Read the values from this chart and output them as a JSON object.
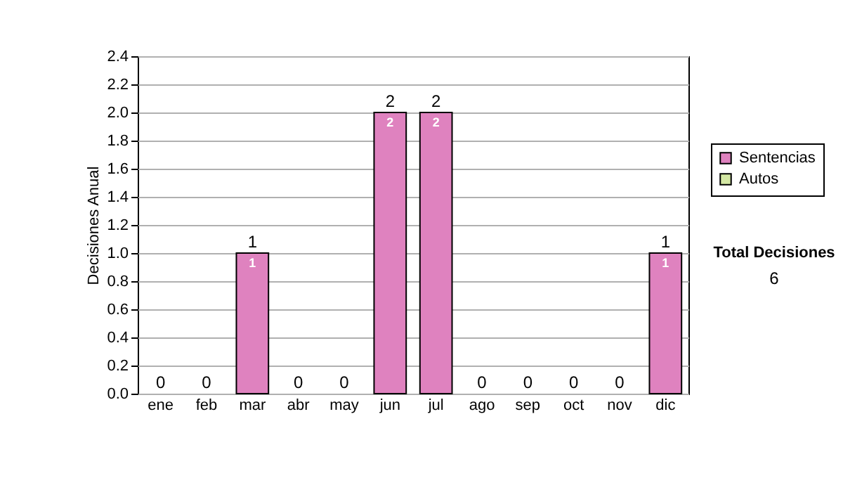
{
  "chart_data": {
    "type": "bar",
    "stacked": true,
    "ylabel": "Decisiones Anual",
    "categories": [
      "ene",
      "feb",
      "mar",
      "abr",
      "may",
      "jun",
      "jul",
      "ago",
      "sep",
      "oct",
      "nov",
      "dic"
    ],
    "series": [
      {
        "name": "Sentencias",
        "color": "#df82bf",
        "values": [
          0,
          0,
          1,
          0,
          0,
          2,
          2,
          0,
          0,
          0,
          0,
          1
        ],
        "value_labels": [
          null,
          null,
          "1",
          null,
          null,
          "2",
          "2",
          null,
          null,
          null,
          null,
          "1"
        ]
      },
      {
        "name": "Autos",
        "color": "#d4e8a4",
        "values": [
          0,
          0,
          0,
          0,
          0,
          0,
          0,
          0,
          0,
          0,
          0,
          0
        ],
        "value_labels": [
          null,
          null,
          null,
          null,
          null,
          null,
          null,
          null,
          null,
          null,
          null,
          null
        ]
      }
    ],
    "totals": [
      "0",
      "0",
      "1",
      "0",
      "0",
      "2",
      "2",
      "0",
      "0",
      "0",
      "0",
      "1"
    ],
    "ylim": [
      0,
      2.4
    ],
    "yticks": [
      {
        "value": 0,
        "label": "0.0"
      },
      0.2,
      0.4,
      0.6,
      0.8,
      {
        "value": 1,
        "label": "1.0"
      },
      1.2,
      1.4,
      1.6,
      1.8,
      {
        "value": 2,
        "label": "2.0"
      },
      2.2,
      2.4
    ],
    "grid": "y",
    "legend": "right",
    "annotations": [
      "Total Decisiones",
      "6"
    ]
  }
}
